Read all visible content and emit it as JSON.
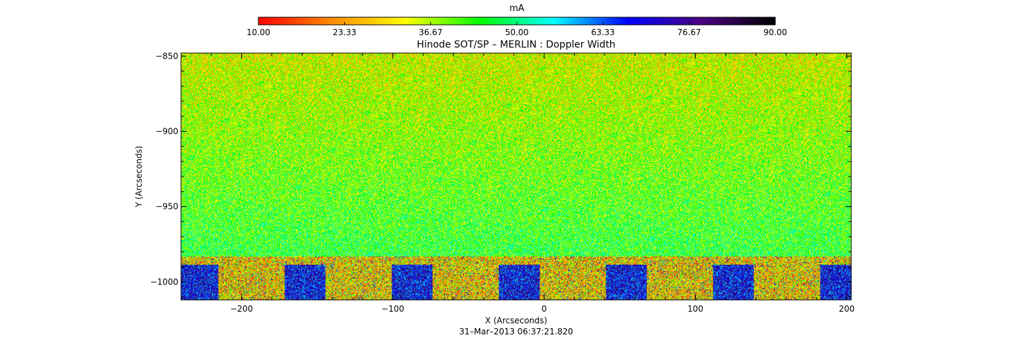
{
  "chart_data": {
    "type": "heatmap",
    "title": "Hinode SOT/SP – MERLIN : Doppler Width",
    "xlabel": "X (Arcseconds)",
    "ylabel": "Y (Arcseconds)",
    "xlim": [
      -240,
      203
    ],
    "ylim": [
      -1012,
      -848
    ],
    "xticks": [
      -200,
      -100,
      0,
      100,
      200
    ],
    "xtick_labels": [
      "−200",
      "−100",
      "0",
      "100",
      "200"
    ],
    "yticks": [
      -850,
      -900,
      -950,
      -1000
    ],
    "ytick_labels": [
      "−850",
      "−900",
      "−950",
      "−1000"
    ],
    "limb_y": -983,
    "colorbar": {
      "label": "mA",
      "range": [
        10.0,
        90.0
      ],
      "ticks": [
        10.0,
        23.33,
        36.67,
        50.0,
        63.33,
        76.67,
        90.0
      ],
      "tick_labels": [
        "10.00",
        "23.33",
        "36.67",
        "50.00",
        "63.33",
        "76.67",
        "90.00"
      ],
      "colormap": [
        "#ff0000",
        "#ff8c00",
        "#ffff00",
        "#00ff00",
        "#00ffff",
        "#0000ff",
        "#4b0082",
        "#000000"
      ]
    },
    "grid": false
  },
  "footer": {
    "timestamp": "31–Mar–2013 06:37:21.820"
  }
}
